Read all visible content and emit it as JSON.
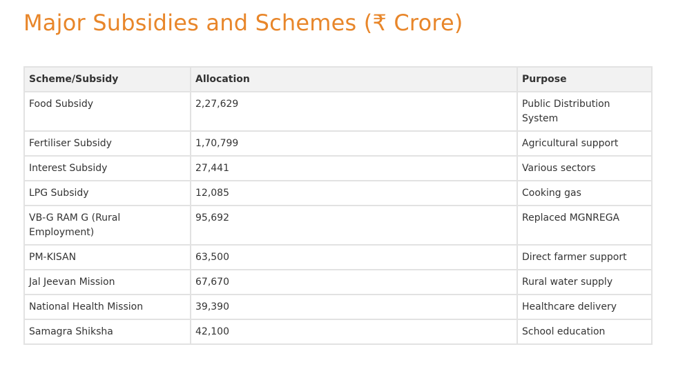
{
  "title": "Major Subsidies and Schemes (₹ Crore)",
  "table": {
    "headers": [
      "Scheme/Subsidy",
      "Allocation",
      "Purpose"
    ],
    "rows": [
      [
        "Food Subsidy",
        "2,27,629",
        "Public Distribution System"
      ],
      [
        "Fertiliser Subsidy",
        "1,70,799",
        "Agricultural support"
      ],
      [
        "Interest Subsidy",
        "27,441",
        "Various sectors"
      ],
      [
        "LPG Subsidy",
        "12,085",
        "Cooking gas"
      ],
      [
        "VB-G RAM G (Rural Employment)",
        "95,692",
        "Replaced MGNREGA"
      ],
      [
        "PM-KISAN",
        "63,500",
        "Direct farmer support"
      ],
      [
        "Jal Jeevan Mission",
        "67,670",
        "Rural water supply"
      ],
      [
        "National Health Mission",
        "39,390",
        "Healthcare delivery"
      ],
      [
        "Samagra Shiksha",
        "42,100",
        "School education"
      ]
    ]
  },
  "colors": {
    "title": "#e8862a",
    "header_bg": "#f2f2f2",
    "border": "#e2e2e2"
  }
}
